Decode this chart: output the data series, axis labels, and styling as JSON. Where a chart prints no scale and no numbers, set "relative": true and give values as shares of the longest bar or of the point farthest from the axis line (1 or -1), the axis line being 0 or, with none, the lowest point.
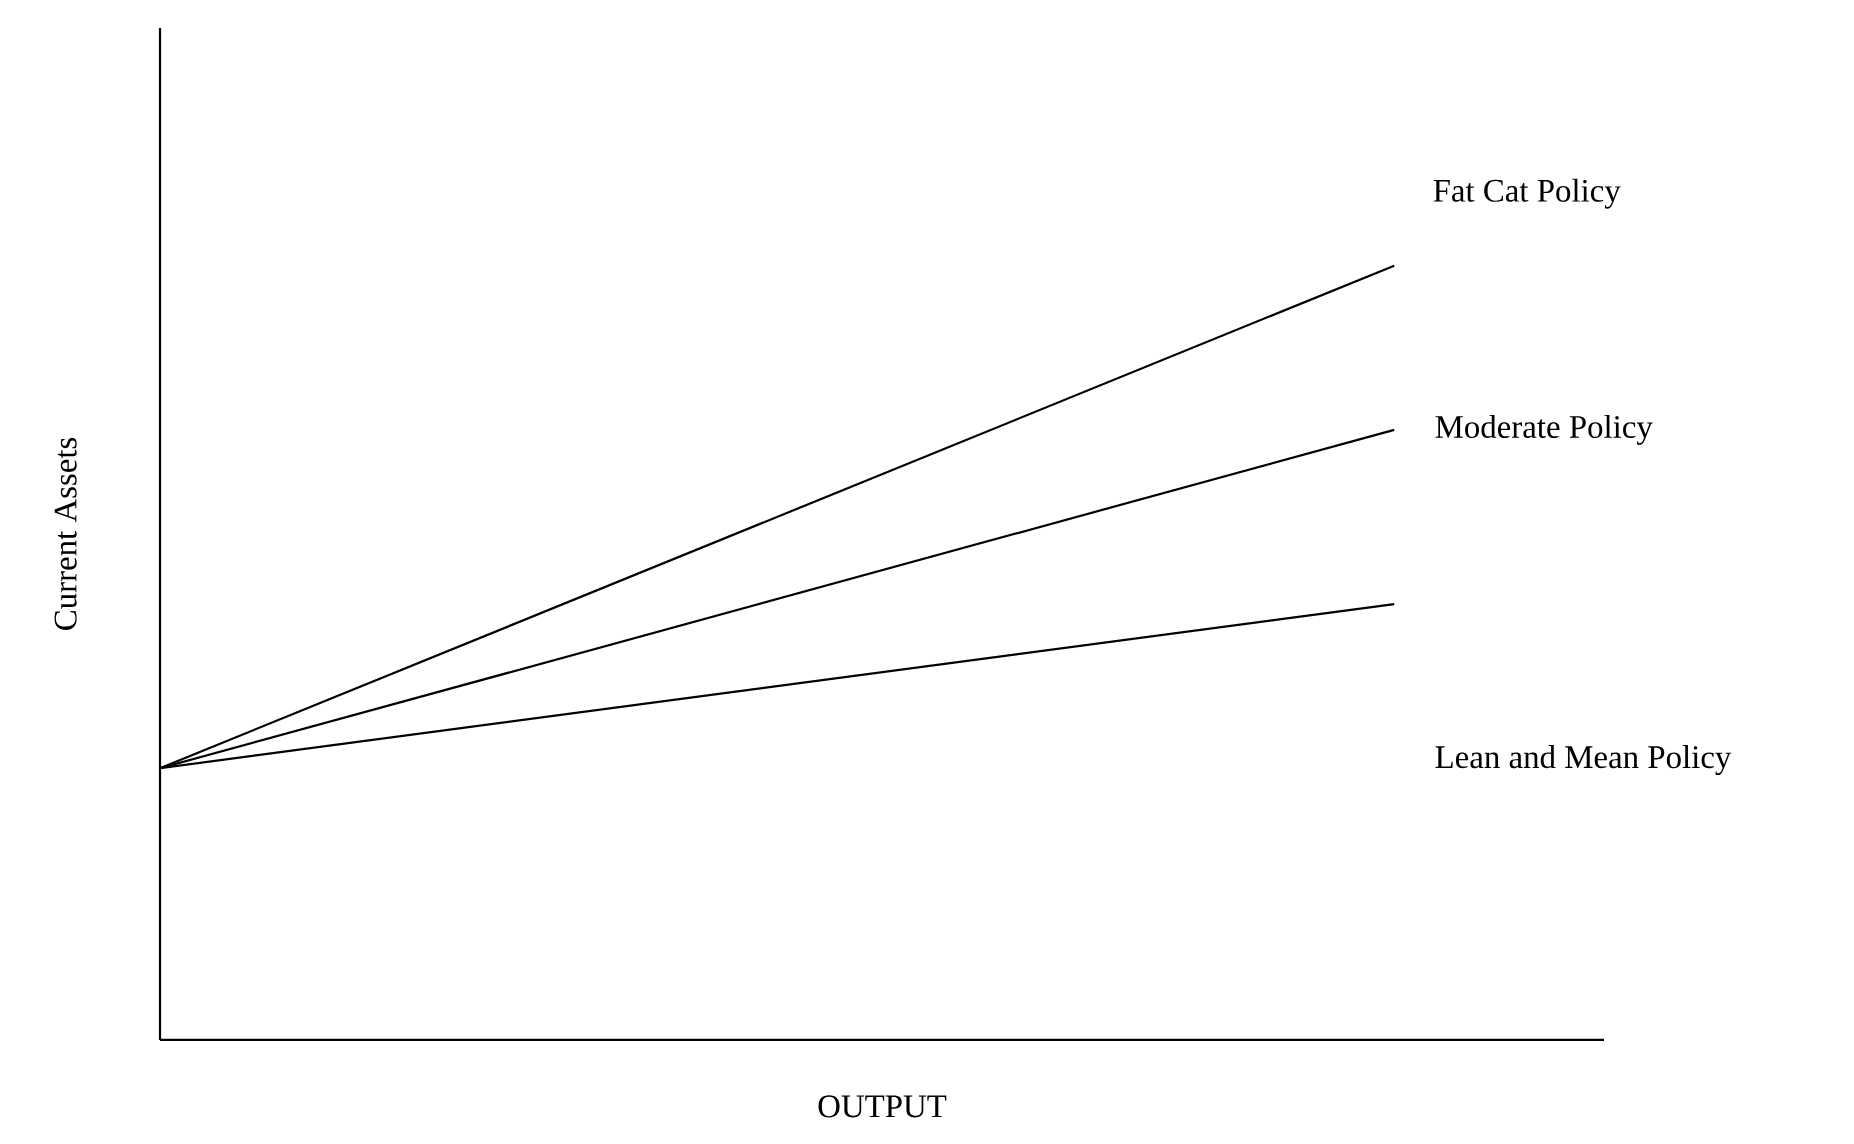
{
  "chart_data": {
    "type": "line",
    "relative": true,
    "xlabel": "OUTPUT",
    "ylabel": "Current Assets",
    "categories": [
      null,
      null
    ],
    "tick_labels": false,
    "series": [
      {
        "name": "Fat Cat Policy",
        "color": "#000000",
        "values": [
          0.351,
          1
        ]
      },
      {
        "name": "Moderate Policy",
        "color": "#000000",
        "values": [
          0.351,
          0.788
        ]
      },
      {
        "name": "Lean and Mean  Policy",
        "color": "#000000",
        "values": [
          0.351,
          0.563
        ]
      }
    ]
  }
}
